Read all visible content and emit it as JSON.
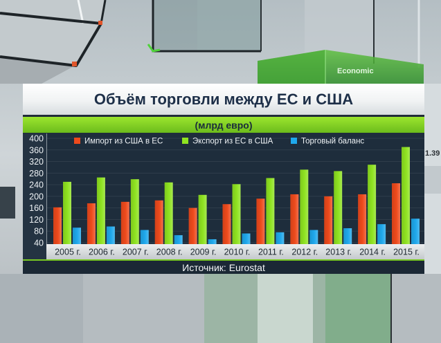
{
  "background": {
    "screen_label": "Economic",
    "side_value": "1.39"
  },
  "chart_data": {
    "type": "bar",
    "title": "Объём торговли между ЕС и США",
    "subtitle": "(млрд евро)",
    "categories": [
      "2005 г.",
      "2006 г.",
      "2007 г.",
      "2008 г.",
      "2009 г.",
      "2010 г.",
      "2011 г.",
      "2012 г.",
      "2013 г.",
      "2014 г.",
      "2015 г."
    ],
    "series": [
      {
        "name": "Импорт из США в ЕС",
        "color": "#ee4a1c",
        "values": [
          162,
          176,
          181,
          186,
          160,
          173,
          192,
          207,
          200,
          207,
          245
        ]
      },
      {
        "name": "Экспорт из ЕС в США",
        "color": "#8fe321",
        "values": [
          250,
          265,
          259,
          248,
          205,
          242,
          263,
          292,
          287,
          309,
          370
        ]
      },
      {
        "name": "Торговый баланс",
        "color": "#1fa8ec",
        "values": [
          92,
          96,
          84,
          66,
          52,
          72,
          76,
          84,
          90,
          104,
          123
        ]
      }
    ],
    "yticks": [
      400,
      360,
      320,
      280,
      240,
      200,
      160,
      120,
      80,
      40
    ],
    "ylim": [
      40,
      400
    ],
    "grid": true,
    "legend_position": "top",
    "source": "Источник: Eurostat"
  }
}
